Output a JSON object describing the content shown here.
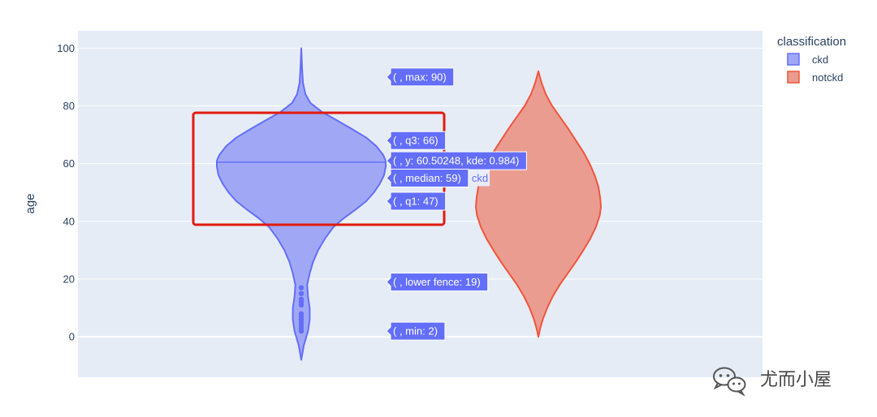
{
  "chart_data": {
    "type": "violin",
    "xlabel": "",
    "ylabel": "age",
    "ylim": [
      -14,
      106
    ],
    "yticks": [
      0,
      20,
      40,
      60,
      80,
      100
    ],
    "grid": true,
    "legend": {
      "title": "classification",
      "placement": "top-right",
      "items": [
        {
          "name": "ckd",
          "color": "#636efa"
        },
        {
          "name": "notckd",
          "color": "#ef553b"
        }
      ]
    },
    "series": [
      {
        "name": "ckd",
        "color": "#636efa",
        "fill": "#a0a8f6",
        "ymin": -8,
        "ymax": 100,
        "profile": [
          [
            -8,
            0.0
          ],
          [
            -3,
            0.03
          ],
          [
            2,
            0.08
          ],
          [
            6,
            0.1
          ],
          [
            10,
            0.1
          ],
          [
            14,
            0.08
          ],
          [
            18,
            0.07
          ],
          [
            22,
            0.1
          ],
          [
            26,
            0.14
          ],
          [
            30,
            0.2
          ],
          [
            34,
            0.28
          ],
          [
            38,
            0.38
          ],
          [
            41,
            0.5
          ],
          [
            44,
            0.64
          ],
          [
            47,
            0.77
          ],
          [
            50,
            0.86
          ],
          [
            53,
            0.93
          ],
          [
            56,
            0.98
          ],
          [
            59,
            1.0
          ],
          [
            61,
            1.0
          ],
          [
            63,
            0.97
          ],
          [
            66,
            0.89
          ],
          [
            69,
            0.77
          ],
          [
            72,
            0.6
          ],
          [
            75,
            0.42
          ],
          [
            78,
            0.24
          ],
          [
            81,
            0.11
          ],
          [
            84,
            0.05
          ],
          [
            88,
            0.02
          ],
          [
            93,
            0.01
          ],
          [
            100,
            0.0
          ]
        ],
        "points": [
          2,
          3,
          4,
          5,
          6,
          7,
          8,
          11,
          12,
          13,
          15,
          17
        ],
        "hover_line_y": 60.5
      },
      {
        "name": "notckd",
        "color": "#ef553b",
        "fill": "#eb9c90",
        "ymin": 0,
        "ymax": 92,
        "profile": [
          [
            0,
            0.0
          ],
          [
            3,
            0.03
          ],
          [
            6,
            0.07
          ],
          [
            10,
            0.14
          ],
          [
            14,
            0.23
          ],
          [
            18,
            0.34
          ],
          [
            22,
            0.47
          ],
          [
            26,
            0.6
          ],
          [
            30,
            0.72
          ],
          [
            34,
            0.83
          ],
          [
            38,
            0.92
          ],
          [
            42,
            0.98
          ],
          [
            45,
            1.0
          ],
          [
            48,
            0.99
          ],
          [
            52,
            0.96
          ],
          [
            56,
            0.9
          ],
          [
            60,
            0.82
          ],
          [
            64,
            0.72
          ],
          [
            68,
            0.6
          ],
          [
            72,
            0.48
          ],
          [
            76,
            0.35
          ],
          [
            80,
            0.22
          ],
          [
            84,
            0.12
          ],
          [
            88,
            0.05
          ],
          [
            92,
            0.0
          ]
        ]
      }
    ],
    "hover_labels": [
      {
        "text": "( , max: 90)",
        "y": 90
      },
      {
        "text": "( , q3: 66)",
        "y": 68
      },
      {
        "text": "( , y: 60.50248, kde: 0.984)",
        "y": 61
      },
      {
        "text": "( , median: 59)",
        "y": 55
      },
      {
        "text": "( , q1: 47)",
        "y": 47
      },
      {
        "text": "( , lower fence: 19)",
        "y": 19
      },
      {
        "text": "( , min: 2)",
        "y": 2
      }
    ],
    "hover_trace_name": "ckd"
  },
  "watermark": {
    "text": "尤而小屋",
    "icon": "wechat-icon"
  },
  "annotation_box": {
    "color": "#e01b0f"
  }
}
